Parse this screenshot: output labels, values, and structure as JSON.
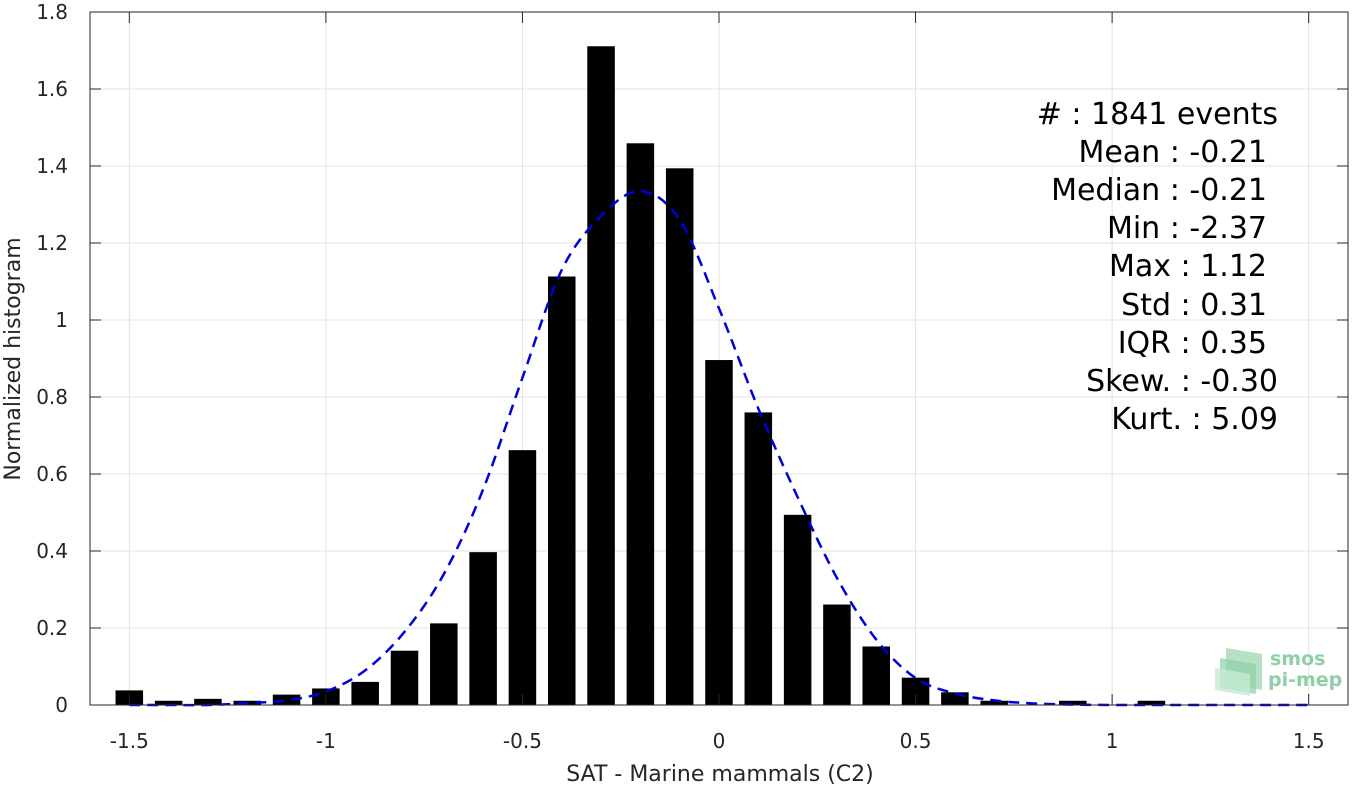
{
  "chart_data": {
    "type": "bar",
    "xlabel": "SAT - Marine mammals (C2)",
    "ylabel": "Normalized histogram",
    "xlim": [
      -1.6,
      1.6
    ],
    "ylim": [
      0,
      1.8
    ],
    "x_ticks": [
      -1.5,
      -1,
      -0.5,
      0,
      0.5,
      1,
      1.5
    ],
    "x_tick_labels": [
      "-1.5",
      "-1",
      "-0.5",
      "0",
      "0.5",
      "1",
      "1.5"
    ],
    "y_ticks": [
      0,
      0.2,
      0.4,
      0.6,
      0.8,
      1,
      1.2,
      1.4,
      1.6,
      1.8
    ],
    "y_tick_labels": [
      "0",
      "0.2",
      "0.4",
      "0.6",
      "0.8",
      "1",
      "1.2",
      "1.4",
      "1.6",
      "1.8"
    ],
    "grid": true,
    "bar_color": "#000000",
    "fit_color": "#0000dd",
    "bars": {
      "x": [
        -1.5,
        -1.4,
        -1.3,
        -1.2,
        -1.1,
        -1.0,
        -0.9,
        -0.8,
        -0.7,
        -0.6,
        -0.5,
        -0.4,
        -0.3,
        -0.2,
        -0.1,
        0.0,
        0.1,
        0.2,
        0.3,
        0.4,
        0.5,
        0.6,
        0.7,
        0.8,
        0.9,
        1.0,
        1.1,
        1.2,
        1.3,
        1.4,
        1.5
      ],
      "values": [
        0.038,
        0.011,
        0.016,
        0.011,
        0.027,
        0.043,
        0.06,
        0.141,
        0.212,
        0.397,
        0.662,
        1.113,
        1.711,
        1.459,
        1.394,
        0.896,
        0.76,
        0.494,
        0.261,
        0.152,
        0.071,
        0.033,
        0.011,
        0.0,
        0.011,
        0.0,
        0.011,
        0.0,
        0.0,
        0.0,
        0.0
      ]
    },
    "fit_curve": {
      "style": "dashed",
      "x": [
        -1.5,
        -1.4,
        -1.3,
        -1.2,
        -1.1,
        -1.0,
        -0.9,
        -0.8,
        -0.7,
        -0.6,
        -0.5,
        -0.4,
        -0.3,
        -0.2,
        -0.1,
        0.0,
        0.1,
        0.2,
        0.3,
        0.4,
        0.5,
        0.6,
        0.7,
        0.8,
        0.9,
        1.0,
        1.1,
        1.2,
        1.3,
        1.4,
        1.5
      ],
      "values": [
        0.0,
        0.0,
        0.0,
        0.005,
        0.012,
        0.035,
        0.09,
        0.19,
        0.34,
        0.56,
        0.85,
        1.13,
        1.27,
        1.335,
        1.26,
        1.03,
        0.77,
        0.54,
        0.33,
        0.17,
        0.07,
        0.03,
        0.012,
        0.004,
        0.001,
        0.0,
        0.0,
        0.0,
        0.0,
        0.0,
        0.0
      ]
    }
  },
  "stats": [
    {
      "label": "#  : 1841 events"
    },
    {
      "label": "Mean : -0.21"
    },
    {
      "label": "Median : -0.21"
    },
    {
      "label": "Min : -2.37"
    },
    {
      "label": "Max : 1.12"
    },
    {
      "label": "Std : 0.31"
    },
    {
      "label": "IQR : 0.35"
    },
    {
      "label": "Skew. : -0.30"
    },
    {
      "label": "Kurt. : 5.09"
    }
  ],
  "logo": {
    "line1": "smos",
    "line2": "pi-mep",
    "color": "#8fcfa6"
  }
}
